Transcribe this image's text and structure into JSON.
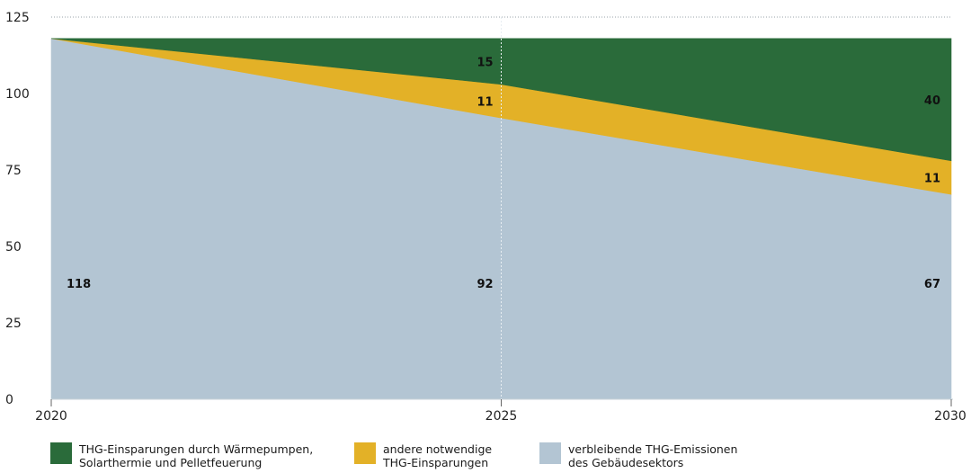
{
  "chart_data": {
    "type": "area",
    "stacked": true,
    "x": [
      2020,
      2025,
      2030
    ],
    "x_tick_labels": [
      "2020",
      "2025",
      "2030"
    ],
    "ylim": [
      0,
      125
    ],
    "y_ticks": [
      0,
      25,
      50,
      75,
      100,
      125
    ],
    "y_tick_labels": [
      "0",
      "25",
      "50",
      "75",
      "100",
      "125"
    ],
    "grid": "horizontal dotted gridline at 125; vertical dotted line at 2025",
    "legend_position": "bottom",
    "series": [
      {
        "name": "verbleibende THG-Emissionen des Gebäudesektors",
        "legend_label": "verbleibende THG-Emissionen\ndes Gebäudesektors",
        "color": "#b3c5d3",
        "values": [
          118,
          92,
          67
        ],
        "data_labels": [
          "118",
          "92",
          "67"
        ]
      },
      {
        "name": "andere notwendige THG-Einsparungen",
        "legend_label": "andere notwendige\nTHG-Einsparungen",
        "color": "#e3b127",
        "values": [
          0,
          11,
          11
        ],
        "data_labels": [
          "",
          "11",
          "11"
        ]
      },
      {
        "name": "THG-Einsparungen durch Wärmepumpen, Solarthermie und Pelletfeuerung",
        "legend_label": "THG-Einsparungen durch Wärmepumpen,\nSolarthermie und Pelletfeuerung",
        "color": "#2a6b3a",
        "values": [
          0,
          15,
          40
        ],
        "data_labels": [
          "",
          "15",
          "40"
        ]
      }
    ]
  }
}
